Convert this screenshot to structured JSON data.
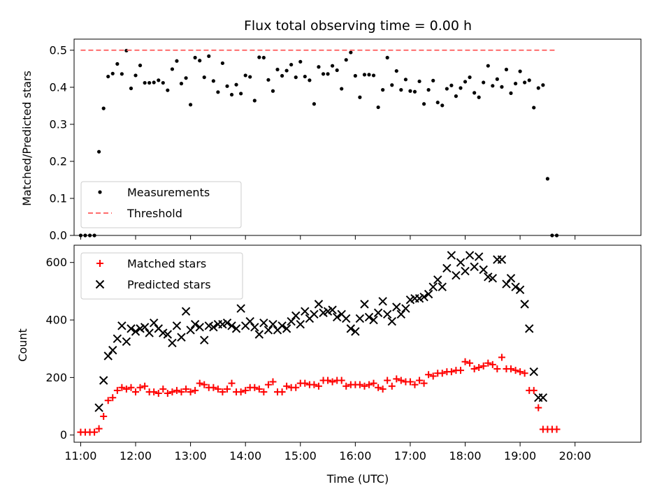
{
  "chart_data": [
    {
      "type": "scatter",
      "title": "Flux total observing time = 0.00 h",
      "ylabel": "Matched/Predicted stars",
      "xlim": [
        10.88,
        21.2
      ],
      "ylim": [
        0,
        0.53
      ],
      "yticks": [
        "0.0",
        "0.1",
        "0.2",
        "0.3",
        "0.4",
        "0.5"
      ],
      "legend_position": "lower-left",
      "series": [
        {
          "name": "Measurements",
          "marker": "dot",
          "color": "#000000",
          "x": [
            11.0,
            11.083,
            11.167,
            11.25,
            11.333,
            11.417,
            11.5,
            11.583,
            11.667,
            11.75,
            11.833,
            11.917,
            12.0,
            12.083,
            12.167,
            12.25,
            12.333,
            12.417,
            12.5,
            12.583,
            12.667,
            12.75,
            12.833,
            12.917,
            13.0,
            13.083,
            13.167,
            13.25,
            13.333,
            13.417,
            13.5,
            13.583,
            13.667,
            13.75,
            13.833,
            13.917,
            14.0,
            14.083,
            14.167,
            14.25,
            14.333,
            14.417,
            14.5,
            14.583,
            14.667,
            14.75,
            14.833,
            14.917,
            15.0,
            15.083,
            15.167,
            15.25,
            15.333,
            15.417,
            15.5,
            15.583,
            15.667,
            15.75,
            15.833,
            15.917,
            16.0,
            16.083,
            16.167,
            16.25,
            16.333,
            16.417,
            16.5,
            16.583,
            16.667,
            16.75,
            16.833,
            16.917,
            17.0,
            17.083,
            17.167,
            17.25,
            17.333,
            17.417,
            17.5,
            17.583,
            17.667,
            17.75,
            17.833,
            17.917,
            18.0,
            18.083,
            18.167,
            18.25,
            18.333,
            18.417,
            18.5,
            18.583,
            18.667,
            18.75,
            18.833,
            18.917,
            19.0,
            19.083,
            19.167,
            19.25,
            19.333,
            19.417,
            19.5,
            19.583,
            19.667
          ],
          "y": [
            0.0,
            0.0,
            0.0,
            0.0,
            0.226,
            0.343,
            0.429,
            0.437,
            0.463,
            0.436,
            0.499,
            0.397,
            0.432,
            0.459,
            0.412,
            0.412,
            0.413,
            0.419,
            0.412,
            0.392,
            0.449,
            0.471,
            0.41,
            0.425,
            0.353,
            0.48,
            0.472,
            0.427,
            0.484,
            0.417,
            0.387,
            0.465,
            0.403,
            0.38,
            0.407,
            0.383,
            0.432,
            0.428,
            0.364,
            0.481,
            0.48,
            0.42,
            0.39,
            0.448,
            0.431,
            0.445,
            0.461,
            0.427,
            0.469,
            0.429,
            0.419,
            0.355,
            0.455,
            0.436,
            0.436,
            0.458,
            0.446,
            0.396,
            0.474,
            0.494,
            0.431,
            0.373,
            0.434,
            0.434,
            0.432,
            0.346,
            0.393,
            0.48,
            0.406,
            0.444,
            0.393,
            0.421,
            0.39,
            0.388,
            0.416,
            0.355,
            0.393,
            0.418,
            0.359,
            0.351,
            0.396,
            0.405,
            0.376,
            0.398,
            0.415,
            0.427,
            0.385,
            0.373,
            0.413,
            0.458,
            0.404,
            0.422,
            0.401,
            0.448,
            0.384,
            0.41,
            0.443,
            0.413,
            0.419,
            0.345,
            0.398,
            0.406,
            0.153,
            0.0,
            0.0
          ]
        },
        {
          "name": "Threshold",
          "marker": "dashed-line",
          "color": "#ff6d6d",
          "x": [
            11.0,
            19.667
          ],
          "y": [
            0.5,
            0.5
          ]
        }
      ]
    },
    {
      "type": "scatter",
      "xlabel": "Time (UTC)",
      "ylabel": "Count",
      "xlim": [
        10.88,
        21.2
      ],
      "ylim": [
        -25,
        660
      ],
      "yticks": [
        "0",
        "200",
        "400",
        "600"
      ],
      "xticks": [
        "11:00",
        "12:00",
        "13:00",
        "14:00",
        "15:00",
        "16:00",
        "17:00",
        "18:00",
        "19:00",
        "20:00"
      ],
      "legend_position": "upper-left",
      "series": [
        {
          "name": "Matched stars",
          "marker": "plus",
          "color": "#ff0000",
          "x": [
            11.0,
            11.083,
            11.167,
            11.25,
            11.333,
            11.417,
            11.5,
            11.583,
            11.667,
            11.75,
            11.833,
            11.917,
            12.0,
            12.083,
            12.167,
            12.25,
            12.333,
            12.417,
            12.5,
            12.583,
            12.667,
            12.75,
            12.833,
            12.917,
            13.0,
            13.083,
            13.167,
            13.25,
            13.333,
            13.417,
            13.5,
            13.583,
            13.667,
            13.75,
            13.833,
            13.917,
            14.0,
            14.083,
            14.167,
            14.25,
            14.333,
            14.417,
            14.5,
            14.583,
            14.667,
            14.75,
            14.833,
            14.917,
            15.0,
            15.083,
            15.167,
            15.25,
            15.333,
            15.417,
            15.5,
            15.583,
            15.667,
            15.75,
            15.833,
            15.917,
            16.0,
            16.083,
            16.167,
            16.25,
            16.333,
            16.417,
            16.5,
            16.583,
            16.667,
            16.75,
            16.833,
            16.917,
            17.0,
            17.083,
            17.167,
            17.25,
            17.333,
            17.417,
            17.5,
            17.583,
            17.667,
            17.75,
            17.833,
            17.917,
            18.0,
            18.083,
            18.167,
            18.25,
            18.333,
            18.417,
            18.5,
            18.583,
            18.667,
            18.75,
            18.833,
            18.917,
            19.0,
            19.083,
            19.167,
            19.25,
            19.333,
            19.417,
            19.5,
            19.583,
            19.667
          ],
          "y": [
            10,
            10,
            10,
            10,
            22,
            65,
            120,
            130,
            155,
            165,
            160,
            165,
            150,
            165,
            170,
            150,
            150,
            145,
            160,
            145,
            150,
            155,
            150,
            160,
            150,
            155,
            180,
            175,
            165,
            165,
            160,
            150,
            160,
            180,
            150,
            150,
            155,
            165,
            165,
            160,
            150,
            175,
            185,
            150,
            150,
            170,
            165,
            165,
            180,
            180,
            175,
            175,
            170,
            190,
            190,
            185,
            190,
            190,
            170,
            175,
            175,
            175,
            170,
            175,
            180,
            165,
            160,
            190,
            170,
            195,
            190,
            185,
            185,
            175,
            190,
            180,
            210,
            205,
            215,
            215,
            220,
            220,
            225,
            225,
            255,
            250,
            230,
            235,
            240,
            250,
            245,
            230,
            270,
            230,
            230,
            225,
            220,
            215,
            155,
            155,
            95,
            20,
            20,
            20,
            20
          ]
        },
        {
          "name": "Predicted stars",
          "marker": "x",
          "color": "#000000",
          "x": [
            11.333,
            11.417,
            11.5,
            11.583,
            11.667,
            11.75,
            11.833,
            11.917,
            12.0,
            12.083,
            12.167,
            12.25,
            12.333,
            12.417,
            12.5,
            12.583,
            12.667,
            12.75,
            12.833,
            12.917,
            13.0,
            13.083,
            13.167,
            13.25,
            13.333,
            13.417,
            13.5,
            13.583,
            13.667,
            13.75,
            13.833,
            13.917,
            14.0,
            14.083,
            14.167,
            14.25,
            14.333,
            14.417,
            14.5,
            14.583,
            14.667,
            14.75,
            14.833,
            14.917,
            15.0,
            15.083,
            15.167,
            15.25,
            15.333,
            15.417,
            15.5,
            15.583,
            15.667,
            15.75,
            15.833,
            15.917,
            16.0,
            16.083,
            16.167,
            16.25,
            16.333,
            16.417,
            16.5,
            16.583,
            16.667,
            16.75,
            16.833,
            16.917,
            17.0,
            17.083,
            17.167,
            17.25,
            17.333,
            17.417,
            17.5,
            17.583,
            17.667,
            17.75,
            17.833,
            17.917,
            18.0,
            18.083,
            18.167,
            18.25,
            18.333,
            18.417,
            18.5,
            18.583,
            18.667,
            18.75,
            18.833,
            18.917,
            19.0,
            19.083,
            19.167,
            19.25,
            19.333,
            19.417
          ],
          "y": [
            95,
            190,
            275,
            295,
            335,
            380,
            325,
            370,
            360,
            370,
            375,
            355,
            390,
            370,
            355,
            350,
            320,
            380,
            340,
            430,
            365,
            385,
            375,
            330,
            380,
            375,
            385,
            385,
            390,
            380,
            370,
            440,
            380,
            395,
            375,
            350,
            390,
            365,
            385,
            365,
            380,
            370,
            395,
            415,
            385,
            430,
            405,
            420,
            455,
            425,
            430,
            435,
            410,
            420,
            405,
            370,
            360,
            405,
            455,
            410,
            400,
            425,
            465,
            420,
            395,
            445,
            420,
            440,
            470,
            475,
            475,
            480,
            490,
            515,
            540,
            515,
            580,
            625,
            555,
            600,
            570,
            625,
            585,
            620,
            575,
            550,
            545,
            610,
            610,
            525,
            545,
            515,
            505,
            455,
            370,
            220,
            130,
            130
          ]
        }
      ]
    }
  ]
}
